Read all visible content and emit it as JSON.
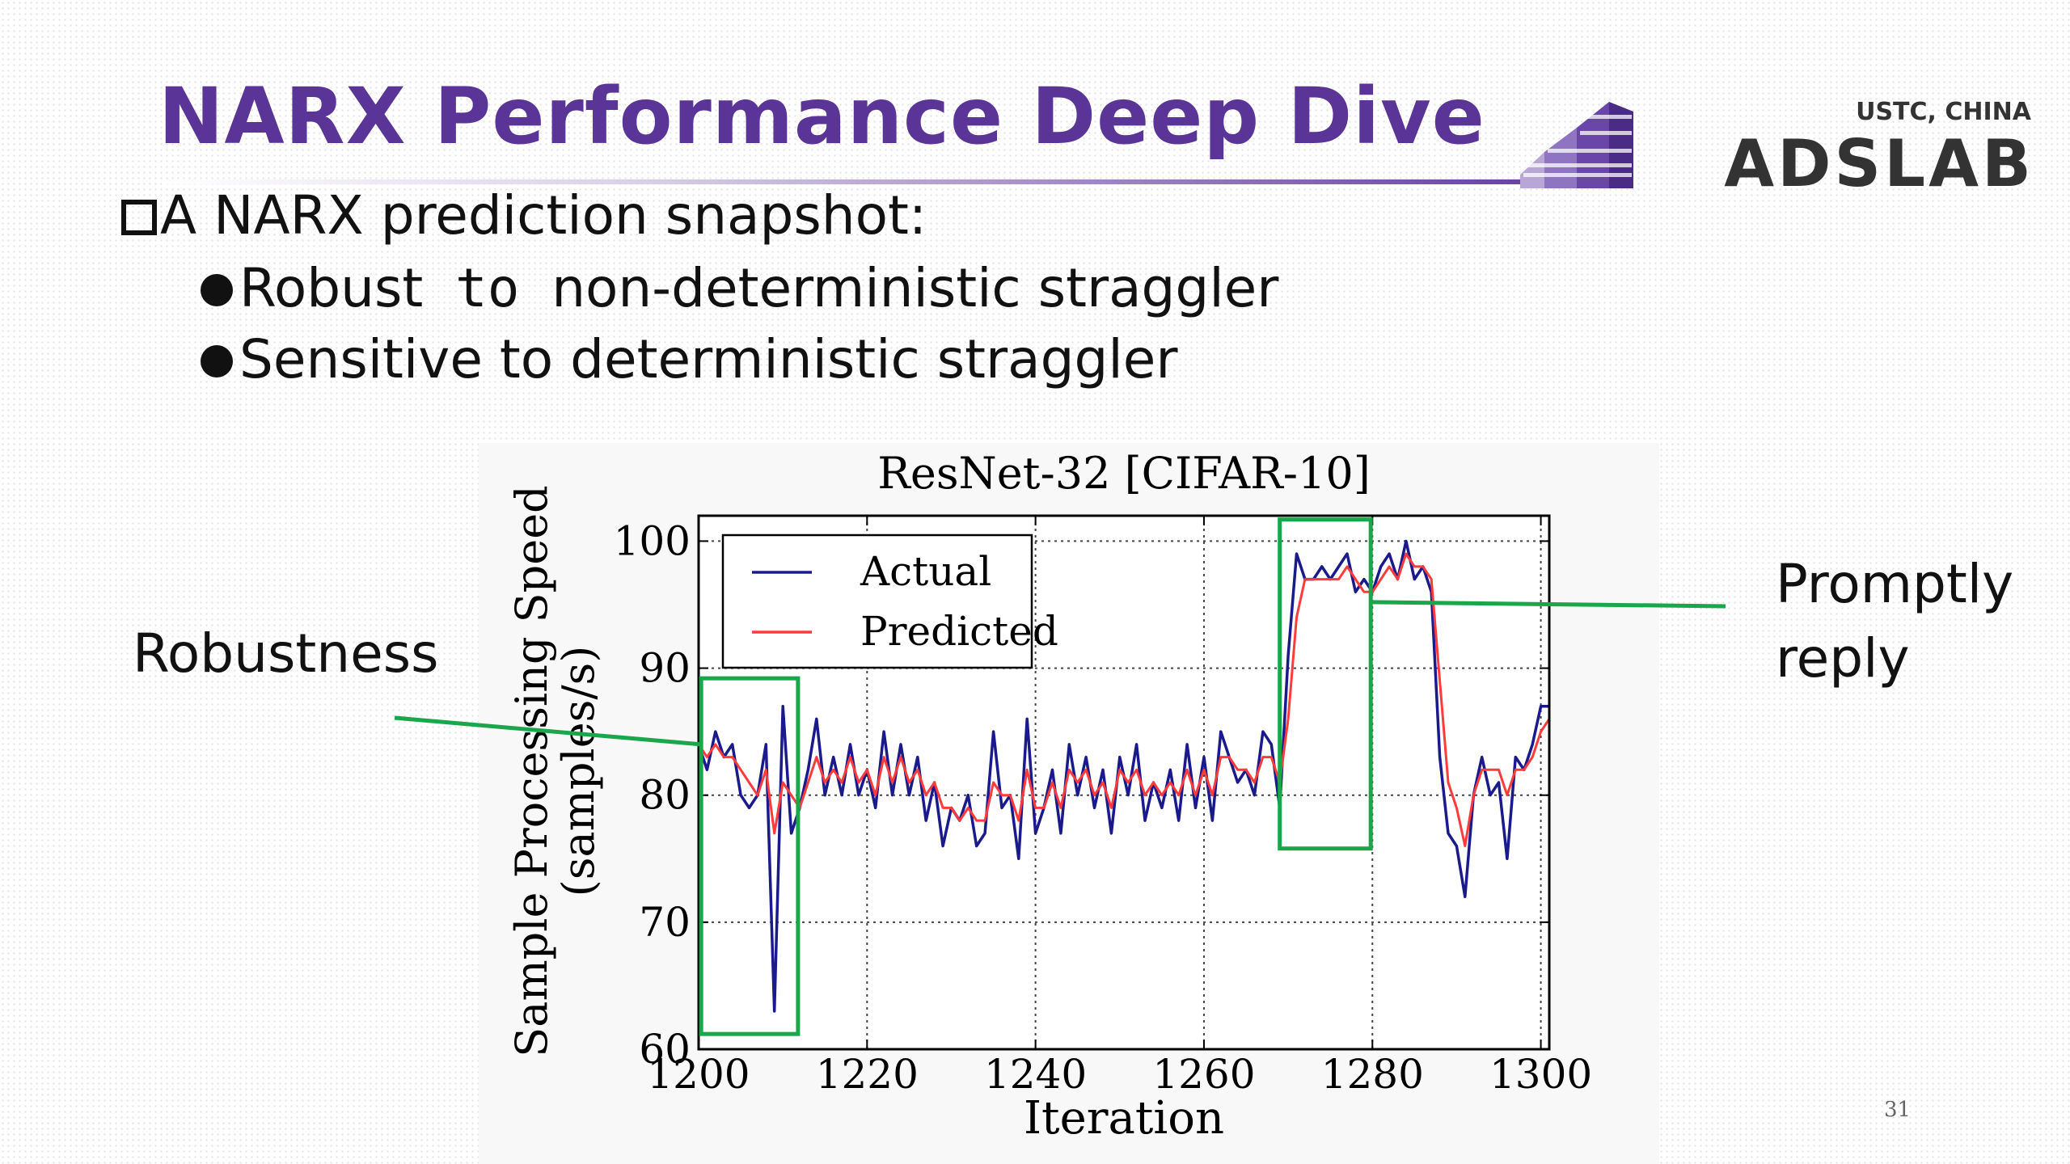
{
  "slide": {
    "title": "NARX Performance Deep Dive",
    "main_bullet": "A NARX prediction snapshot:",
    "sub_bullets": {
      "robust_prefix": "Robust",
      "robust_mono": " to ",
      "robust_suffix": "non-deterministic straggler",
      "sensitive": "Sensitive to deterministic straggler"
    },
    "page_number": "31"
  },
  "logo": {
    "top_text": "USTC, CHINA",
    "main_text": "ADSLAB"
  },
  "annotations": {
    "left": "Robustness",
    "right_line1": "Promptly",
    "right_line2": "reply"
  },
  "colors": {
    "title": "#5a3496",
    "actual": "#1a1a8c",
    "predicted": "#ff3b3b",
    "highlight": "#1aa64b"
  },
  "chart_data": {
    "type": "line",
    "title": "ResNet-32 [CIFAR-10]",
    "xlabel": "Iteration",
    "ylabel_line1": "Sample Processing Speed",
    "ylabel_line2": "(samples/s)",
    "xlim": [
      1200,
      1301
    ],
    "ylim": [
      60,
      102
    ],
    "xticks": [
      1200,
      1220,
      1240,
      1260,
      1280,
      1300
    ],
    "yticks": [
      60,
      70,
      80,
      90,
      100
    ],
    "grid": true,
    "legend_position": "top-left",
    "series": [
      {
        "name": "Actual",
        "color": "#1a1a8c",
        "x": [
          1200,
          1201,
          1202,
          1203,
          1204,
          1205,
          1206,
          1207,
          1208,
          1209,
          1210,
          1211,
          1212,
          1213,
          1214,
          1215,
          1216,
          1217,
          1218,
          1219,
          1220,
          1221,
          1222,
          1223,
          1224,
          1225,
          1226,
          1227,
          1228,
          1229,
          1230,
          1231,
          1232,
          1233,
          1234,
          1235,
          1236,
          1237,
          1238,
          1239,
          1240,
          1241,
          1242,
          1243,
          1244,
          1245,
          1246,
          1247,
          1248,
          1249,
          1250,
          1251,
          1252,
          1253,
          1254,
          1255,
          1256,
          1257,
          1258,
          1259,
          1260,
          1261,
          1262,
          1263,
          1264,
          1265,
          1266,
          1267,
          1268,
          1269,
          1270,
          1271,
          1272,
          1273,
          1274,
          1275,
          1276,
          1277,
          1278,
          1279,
          1280,
          1281,
          1282,
          1283,
          1284,
          1285,
          1286,
          1287,
          1288,
          1289,
          1290,
          1291,
          1292,
          1293,
          1294,
          1295,
          1296,
          1297,
          1298,
          1299,
          1300,
          1301
        ],
        "y": [
          84,
          82,
          85,
          83,
          84,
          80,
          79,
          80,
          84,
          63,
          87,
          77,
          79,
          82,
          86,
          80,
          83,
          80,
          84,
          80,
          82,
          79,
          85,
          80,
          84,
          80,
          83,
          78,
          81,
          76,
          79,
          78,
          80,
          76,
          77,
          85,
          79,
          80,
          75,
          86,
          77,
          79,
          82,
          77,
          84,
          80,
          83,
          79,
          82,
          77,
          83,
          80,
          84,
          78,
          81,
          79,
          82,
          78,
          84,
          79,
          83,
          78,
          85,
          83,
          81,
          82,
          80,
          85,
          84,
          79,
          91,
          99,
          97,
          97,
          98,
          97,
          98,
          99,
          96,
          97,
          96,
          98,
          99,
          97,
          100,
          97,
          98,
          96,
          83,
          77,
          76,
          72,
          80,
          83,
          80,
          81,
          75,
          83,
          82,
          84,
          87,
          87
        ]
      },
      {
        "name": "Predicted",
        "color": "#ff3b3b",
        "x": [
          1200,
          1201,
          1202,
          1203,
          1204,
          1205,
          1206,
          1207,
          1208,
          1209,
          1210,
          1211,
          1212,
          1213,
          1214,
          1215,
          1216,
          1217,
          1218,
          1219,
          1220,
          1221,
          1222,
          1223,
          1224,
          1225,
          1226,
          1227,
          1228,
          1229,
          1230,
          1231,
          1232,
          1233,
          1234,
          1235,
          1236,
          1237,
          1238,
          1239,
          1240,
          1241,
          1242,
          1243,
          1244,
          1245,
          1246,
          1247,
          1248,
          1249,
          1250,
          1251,
          1252,
          1253,
          1254,
          1255,
          1256,
          1257,
          1258,
          1259,
          1260,
          1261,
          1262,
          1263,
          1264,
          1265,
          1266,
          1267,
          1268,
          1269,
          1270,
          1271,
          1272,
          1273,
          1274,
          1275,
          1276,
          1277,
          1278,
          1279,
          1280,
          1281,
          1282,
          1283,
          1284,
          1285,
          1286,
          1287,
          1288,
          1289,
          1290,
          1291,
          1292,
          1293,
          1294,
          1295,
          1296,
          1297,
          1298,
          1299,
          1300,
          1301
        ],
        "y": [
          84,
          83,
          84,
          83,
          83,
          82,
          81,
          80,
          82,
          77,
          81,
          80,
          79,
          81,
          83,
          81,
          82,
          81,
          83,
          81,
          82,
          80,
          83,
          81,
          83,
          81,
          82,
          80,
          81,
          79,
          79,
          78,
          79,
          78,
          78,
          81,
          80,
          80,
          78,
          82,
          79,
          79,
          81,
          79,
          82,
          81,
          82,
          80,
          81,
          79,
          82,
          81,
          82,
          80,
          81,
          80,
          81,
          80,
          82,
          80,
          82,
          80,
          83,
          83,
          82,
          82,
          81,
          83,
          83,
          81,
          86,
          94,
          97,
          97,
          97,
          97,
          97,
          98,
          97,
          96,
          96,
          97,
          98,
          97,
          99,
          98,
          98,
          97,
          89,
          81,
          79,
          76,
          80,
          82,
          82,
          82,
          80,
          82,
          82,
          83,
          85,
          86
        ]
      }
    ],
    "highlight_boxes": [
      {
        "x_range": [
          1200.3,
          1211.8
        ],
        "y_range": [
          61.2,
          89.2
        ]
      },
      {
        "x_range": [
          1269.0,
          1279.8
        ],
        "y_range": [
          75.8,
          101.7
        ]
      }
    ]
  }
}
